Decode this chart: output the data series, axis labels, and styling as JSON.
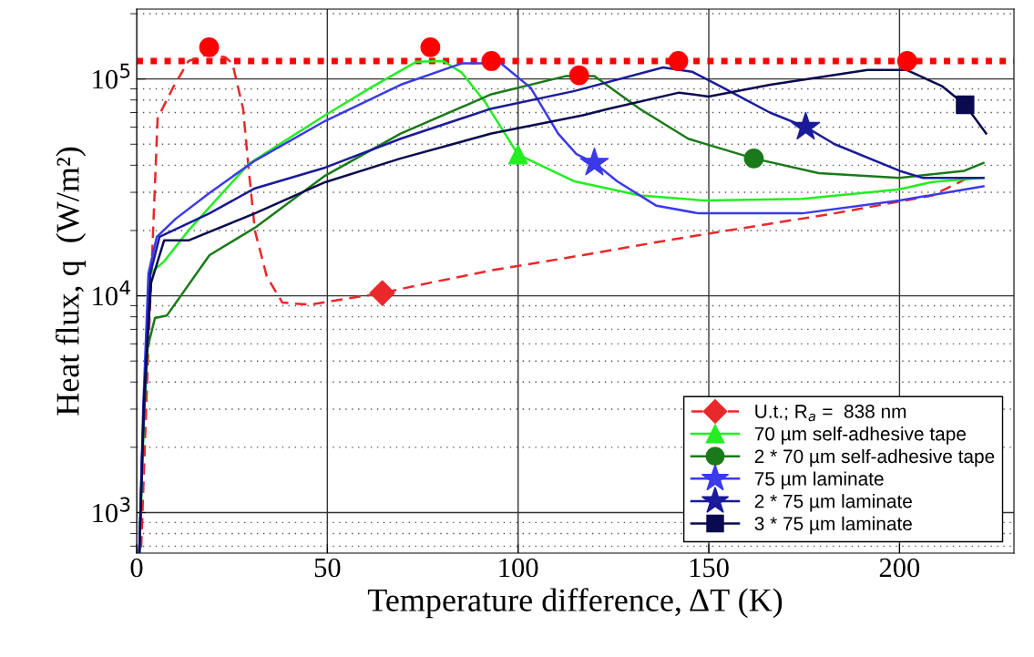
{
  "chart_data": {
    "type": "line",
    "xlabel": "Temperature difference, ΔT (K)",
    "ylabel": "Heat flux, q  (W/m²)",
    "xlim": [
      0,
      230
    ],
    "xticks": [
      0,
      50,
      100,
      150,
      200
    ],
    "ylim": [
      650,
      210000
    ],
    "yticks": [
      {
        "value": 1000,
        "label": "10$^{3}$"
      },
      {
        "value": 10000,
        "label": "10$^{4}$"
      },
      {
        "value": 100000,
        "label": "10$^{5}$"
      }
    ],
    "log": "y",
    "grid": true,
    "legend": "bottom right",
    "ref_lines": [
      {
        "axis": "y",
        "value": 121000,
        "color": "#ff0000",
        "line_style": "dotted"
      }
    ],
    "series": [
      {
        "color": "#e8282a",
        "line_style": "dashed",
        "x": [
          1.2,
          2.9,
          5.5,
          9.5,
          13.6,
          18.4,
          23.2,
          25.1,
          27.9,
          29.4,
          31.0,
          34.1,
          38.2,
          45.3,
          64.4,
          77.1,
          93.1,
          117,
          140.6,
          183,
          208.6,
          218
        ],
        "values": [
          690,
          4800,
          66000,
          91000,
          121000,
          130000,
          126000,
          118000,
          73000,
          38000,
          20000,
          12300,
          9300,
          9100,
          10300,
          11500,
          13100,
          15400,
          18200,
          24000,
          29000,
          35000
        ]
      },
      {
        "color": "#22ee22",
        "line_style": "solid",
        "x": [
          0.7,
          2.4,
          3.6,
          7.2,
          13.6,
          29.4,
          49.4,
          61.3,
          73.3,
          80.4,
          85.2,
          91.4,
          100,
          114.8,
          132,
          148.9,
          174.5,
          200,
          208.6,
          222
        ],
        "values": [
          650,
          4800,
          12700,
          14400,
          20000,
          40600,
          68000,
          91000,
          120000,
          121000,
          107000,
          78000,
          44800,
          33700,
          29000,
          27500,
          28000,
          31000,
          33500,
          35000
        ]
      },
      {
        "color": "#1a7a1a",
        "line_style": "solid",
        "x": [
          0.7,
          1.4,
          2.9,
          4.8,
          7.9,
          19.1,
          31,
          49.4,
          69.2,
          93,
          112.4,
          120,
          132,
          144.6,
          161.8,
          178.8,
          200,
          217,
          222
        ],
        "values": [
          650,
          1820,
          5800,
          7900,
          8100,
          15400,
          20600,
          35800,
          56000,
          85000,
          103000,
          103000,
          72600,
          53000,
          43000,
          36800,
          35000,
          37700,
          41000
        ]
      },
      {
        "color": "#3a3ae8",
        "line_style": "solid",
        "x": [
          0.7,
          1.7,
          3.1,
          5.3,
          10.3,
          19.1,
          31,
          49.4,
          69.2,
          85.2,
          95.5,
          103.3,
          110.5,
          115.3,
          120,
          126,
          136.3,
          147.3,
          174.5,
          200,
          222
        ],
        "values": [
          650,
          2960,
          12700,
          18700,
          22700,
          29800,
          42000,
          64000,
          94000,
          118000,
          118000,
          91000,
          56000,
          45000,
          41000,
          33700,
          26000,
          24000,
          24000,
          27500,
          32000
        ]
      },
      {
        "color": "#1a1a9a",
        "line_style": "solid",
        "x": [
          0.7,
          1.9,
          3.6,
          6,
          19.1,
          31,
          49.4,
          69.2,
          93,
          114.8,
          138,
          145.6,
          153,
          166,
          175.4,
          183,
          200,
          206,
          222
        ],
        "values": [
          650,
          2960,
          12700,
          18700,
          24000,
          31300,
          39000,
          53000,
          73000,
          88000,
          113000,
          108000,
          92500,
          70000,
          60000,
          50000,
          37700,
          35000,
          35000
        ]
      },
      {
        "color": "#0a0a50",
        "line_style": "solid",
        "x": [
          0.7,
          1.9,
          3.8,
          7.2,
          13.6,
          31,
          49.4,
          69.2,
          93,
          117,
          123.4,
          142.2,
          149.9,
          166.1,
          191.6,
          201.9,
          211.2,
          217.2,
          222.7
        ],
        "values": [
          650,
          3300,
          11500,
          18000,
          18000,
          24000,
          33400,
          43000,
          56000,
          68000,
          72600,
          86500,
          83000,
          94000,
          110000,
          110000,
          92500,
          76000,
          56000
        ]
      },
      {
        "type": "scatter",
        "name": "U.t.; R$_{a}$ =  838 nm",
        "color": "#e8282a",
        "marker": "diamond",
        "x": [
          64.4
        ],
        "values": [
          10300
        ]
      },
      {
        "type": "scatter",
        "name": "70 µm self-adhesive tape",
        "color": "#22ee22",
        "marker": "triangle",
        "x": [
          100
        ],
        "values": [
          44800
        ]
      },
      {
        "type": "scatter",
        "name": "2 * 70 µm self-adhesive tape",
        "color": "#1a7a1a",
        "marker": "circle",
        "x": [
          161.8
        ],
        "values": [
          43000
        ]
      },
      {
        "type": "scatter",
        "name": "75 µm laminate",
        "color": "#3a3ae8",
        "marker": "star",
        "x": [
          120
        ],
        "values": [
          41000
        ]
      },
      {
        "type": "scatter",
        "name": "2 * 75 µm laminate",
        "color": "#1a1a9a",
        "marker": "star",
        "x": [
          175.4
        ],
        "values": [
          60000
        ]
      },
      {
        "type": "scatter",
        "name": "3 * 75 µm laminate",
        "color": "#0a0a50",
        "marker": "square",
        "x": [
          217.2
        ],
        "values": [
          76000
        ]
      },
      {
        "type": "scatter",
        "color": "#ff0000",
        "marker": "circle",
        "x": [
          19,
          77,
          93,
          116,
          142,
          202
        ],
        "values": [
          140000,
          140000,
          121000,
          104000,
          121000,
          121000
        ]
      }
    ]
  }
}
